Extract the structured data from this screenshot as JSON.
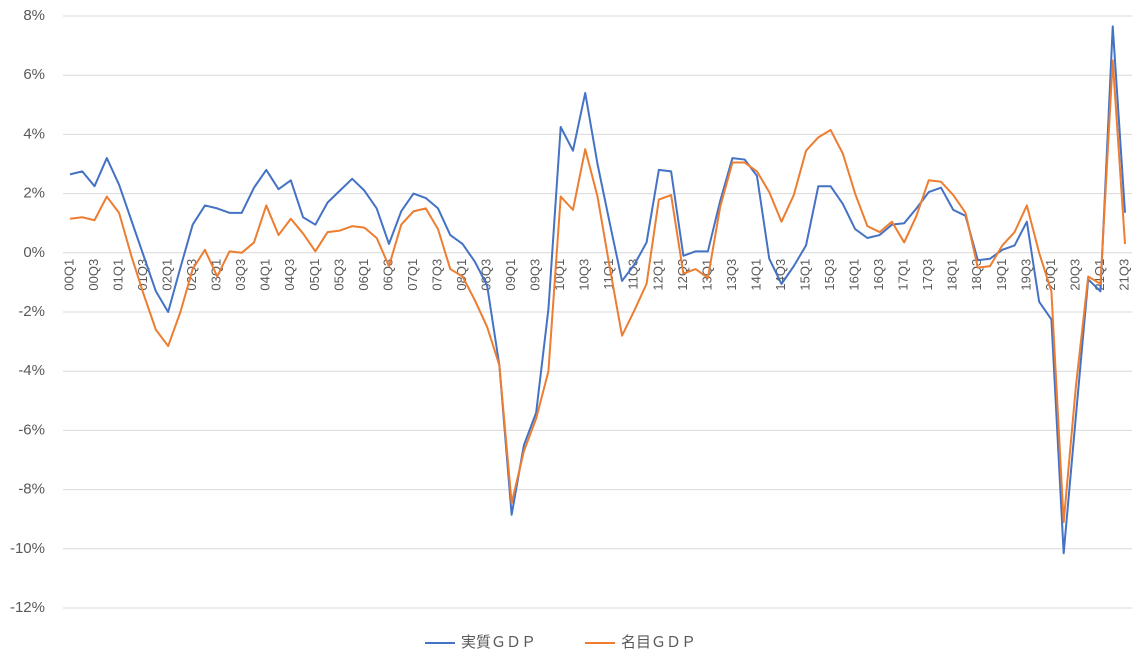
{
  "chart_data": {
    "type": "line",
    "categories": [
      "00Q1",
      null,
      "00Q3",
      null,
      "01Q1",
      null,
      "01Q3",
      null,
      "02Q1",
      null,
      "02Q3",
      null,
      "03Q1",
      null,
      "03Q3",
      null,
      "04Q1",
      null,
      "04Q3",
      null,
      "05Q1",
      null,
      "05Q3",
      null,
      "06Q1",
      null,
      "06Q3",
      null,
      "07Q1",
      null,
      "07Q3",
      null,
      "08Q1",
      null,
      "08Q3",
      null,
      "09Q1",
      null,
      "09Q3",
      null,
      "10Q1",
      null,
      "10Q3",
      null,
      "11Q1",
      null,
      "11Q3",
      null,
      "12Q1",
      null,
      "12Q3",
      null,
      "13Q1",
      null,
      "13Q3",
      null,
      "14Q1",
      null,
      "14Q3",
      null,
      "15Q1",
      null,
      "15Q3",
      null,
      "16Q1",
      null,
      "16Q3",
      null,
      "17Q1",
      null,
      "17Q3",
      null,
      "18Q1",
      null,
      "18Q3",
      null,
      "19Q1",
      null,
      "19Q3",
      null,
      "20Q1",
      null,
      "20Q3",
      null,
      "21Q1",
      null,
      "21Q3"
    ],
    "series": [
      {
        "name": "実質ＧＤＰ",
        "color": "#4472c4",
        "values": [
          2.65,
          2.75,
          2.25,
          3.2,
          2.3,
          1.1,
          -0.1,
          -1.3,
          -2.0,
          -0.5,
          0.95,
          1.6,
          1.5,
          1.35,
          1.35,
          2.2,
          2.8,
          2.15,
          2.45,
          1.2,
          0.95,
          1.7,
          2.1,
          2.5,
          2.1,
          1.5,
          0.3,
          1.4,
          2.0,
          1.85,
          1.5,
          0.6,
          0.3,
          -0.3,
          -1.1,
          -3.8,
          -8.85,
          -6.5,
          -5.4,
          -1.9,
          4.25,
          3.45,
          5.4,
          3.0,
          1.0,
          -0.95,
          -0.4,
          0.35,
          2.8,
          2.75,
          -0.1,
          0.05,
          0.05,
          1.75,
          3.2,
          3.15,
          2.6,
          -0.2,
          -1.05,
          -0.45,
          0.25,
          2.25,
          2.25,
          1.65,
          0.8,
          0.5,
          0.6,
          0.95,
          1.0,
          1.5,
          2.05,
          2.2,
          1.45,
          1.25,
          -0.25,
          -0.2,
          0.1,
          0.25,
          1.05,
          -1.65,
          -2.25,
          -10.15,
          -5.5,
          -0.9,
          -1.3,
          7.65,
          1.35
        ]
      },
      {
        "name": "名目ＧＤＰ",
        "color": "#ed7d31",
        "values": [
          1.15,
          1.2,
          1.1,
          1.9,
          1.35,
          -0.1,
          -1.4,
          -2.6,
          -3.15,
          -2.0,
          -0.55,
          0.1,
          -0.8,
          0.05,
          0.0,
          0.35,
          1.6,
          0.6,
          1.15,
          0.65,
          0.05,
          0.7,
          0.75,
          0.9,
          0.85,
          0.5,
          -0.45,
          0.95,
          1.4,
          1.5,
          0.8,
          -0.55,
          -0.8,
          -1.6,
          -2.5,
          -3.8,
          -8.45,
          -6.7,
          -5.6,
          -4.0,
          1.9,
          1.45,
          3.5,
          1.9,
          -0.5,
          -2.8,
          -1.95,
          -1.05,
          1.8,
          1.95,
          -0.7,
          -0.55,
          -0.85,
          1.55,
          3.05,
          3.05,
          2.75,
          2.05,
          1.05,
          1.95,
          3.45,
          3.9,
          4.15,
          3.35,
          2.0,
          0.9,
          0.7,
          1.05,
          0.35,
          1.25,
          2.45,
          2.4,
          1.95,
          1.35,
          -0.5,
          -0.45,
          0.25,
          0.7,
          1.6,
          0.0,
          -1.3,
          -9.1,
          -4.5,
          -0.8,
          -1.05,
          6.5,
          0.3
        ]
      }
    ],
    "ylim": [
      -12,
      8
    ],
    "yticks": [
      {
        "value": -12,
        "label": "-12%"
      },
      {
        "value": -10,
        "label": "-10%"
      },
      {
        "value": -8,
        "label": "-8%"
      },
      {
        "value": -6,
        "label": "-6%"
      },
      {
        "value": -4,
        "label": "-4%"
      },
      {
        "value": -2,
        "label": "-2%"
      },
      {
        "value": 0,
        "label": "0%"
      },
      {
        "value": 2,
        "label": "2%"
      },
      {
        "value": 4,
        "label": "4%"
      },
      {
        "value": 6,
        "label": "6%"
      },
      {
        "value": 8,
        "label": "8%"
      }
    ],
    "grid": true,
    "legend": "bottom"
  }
}
